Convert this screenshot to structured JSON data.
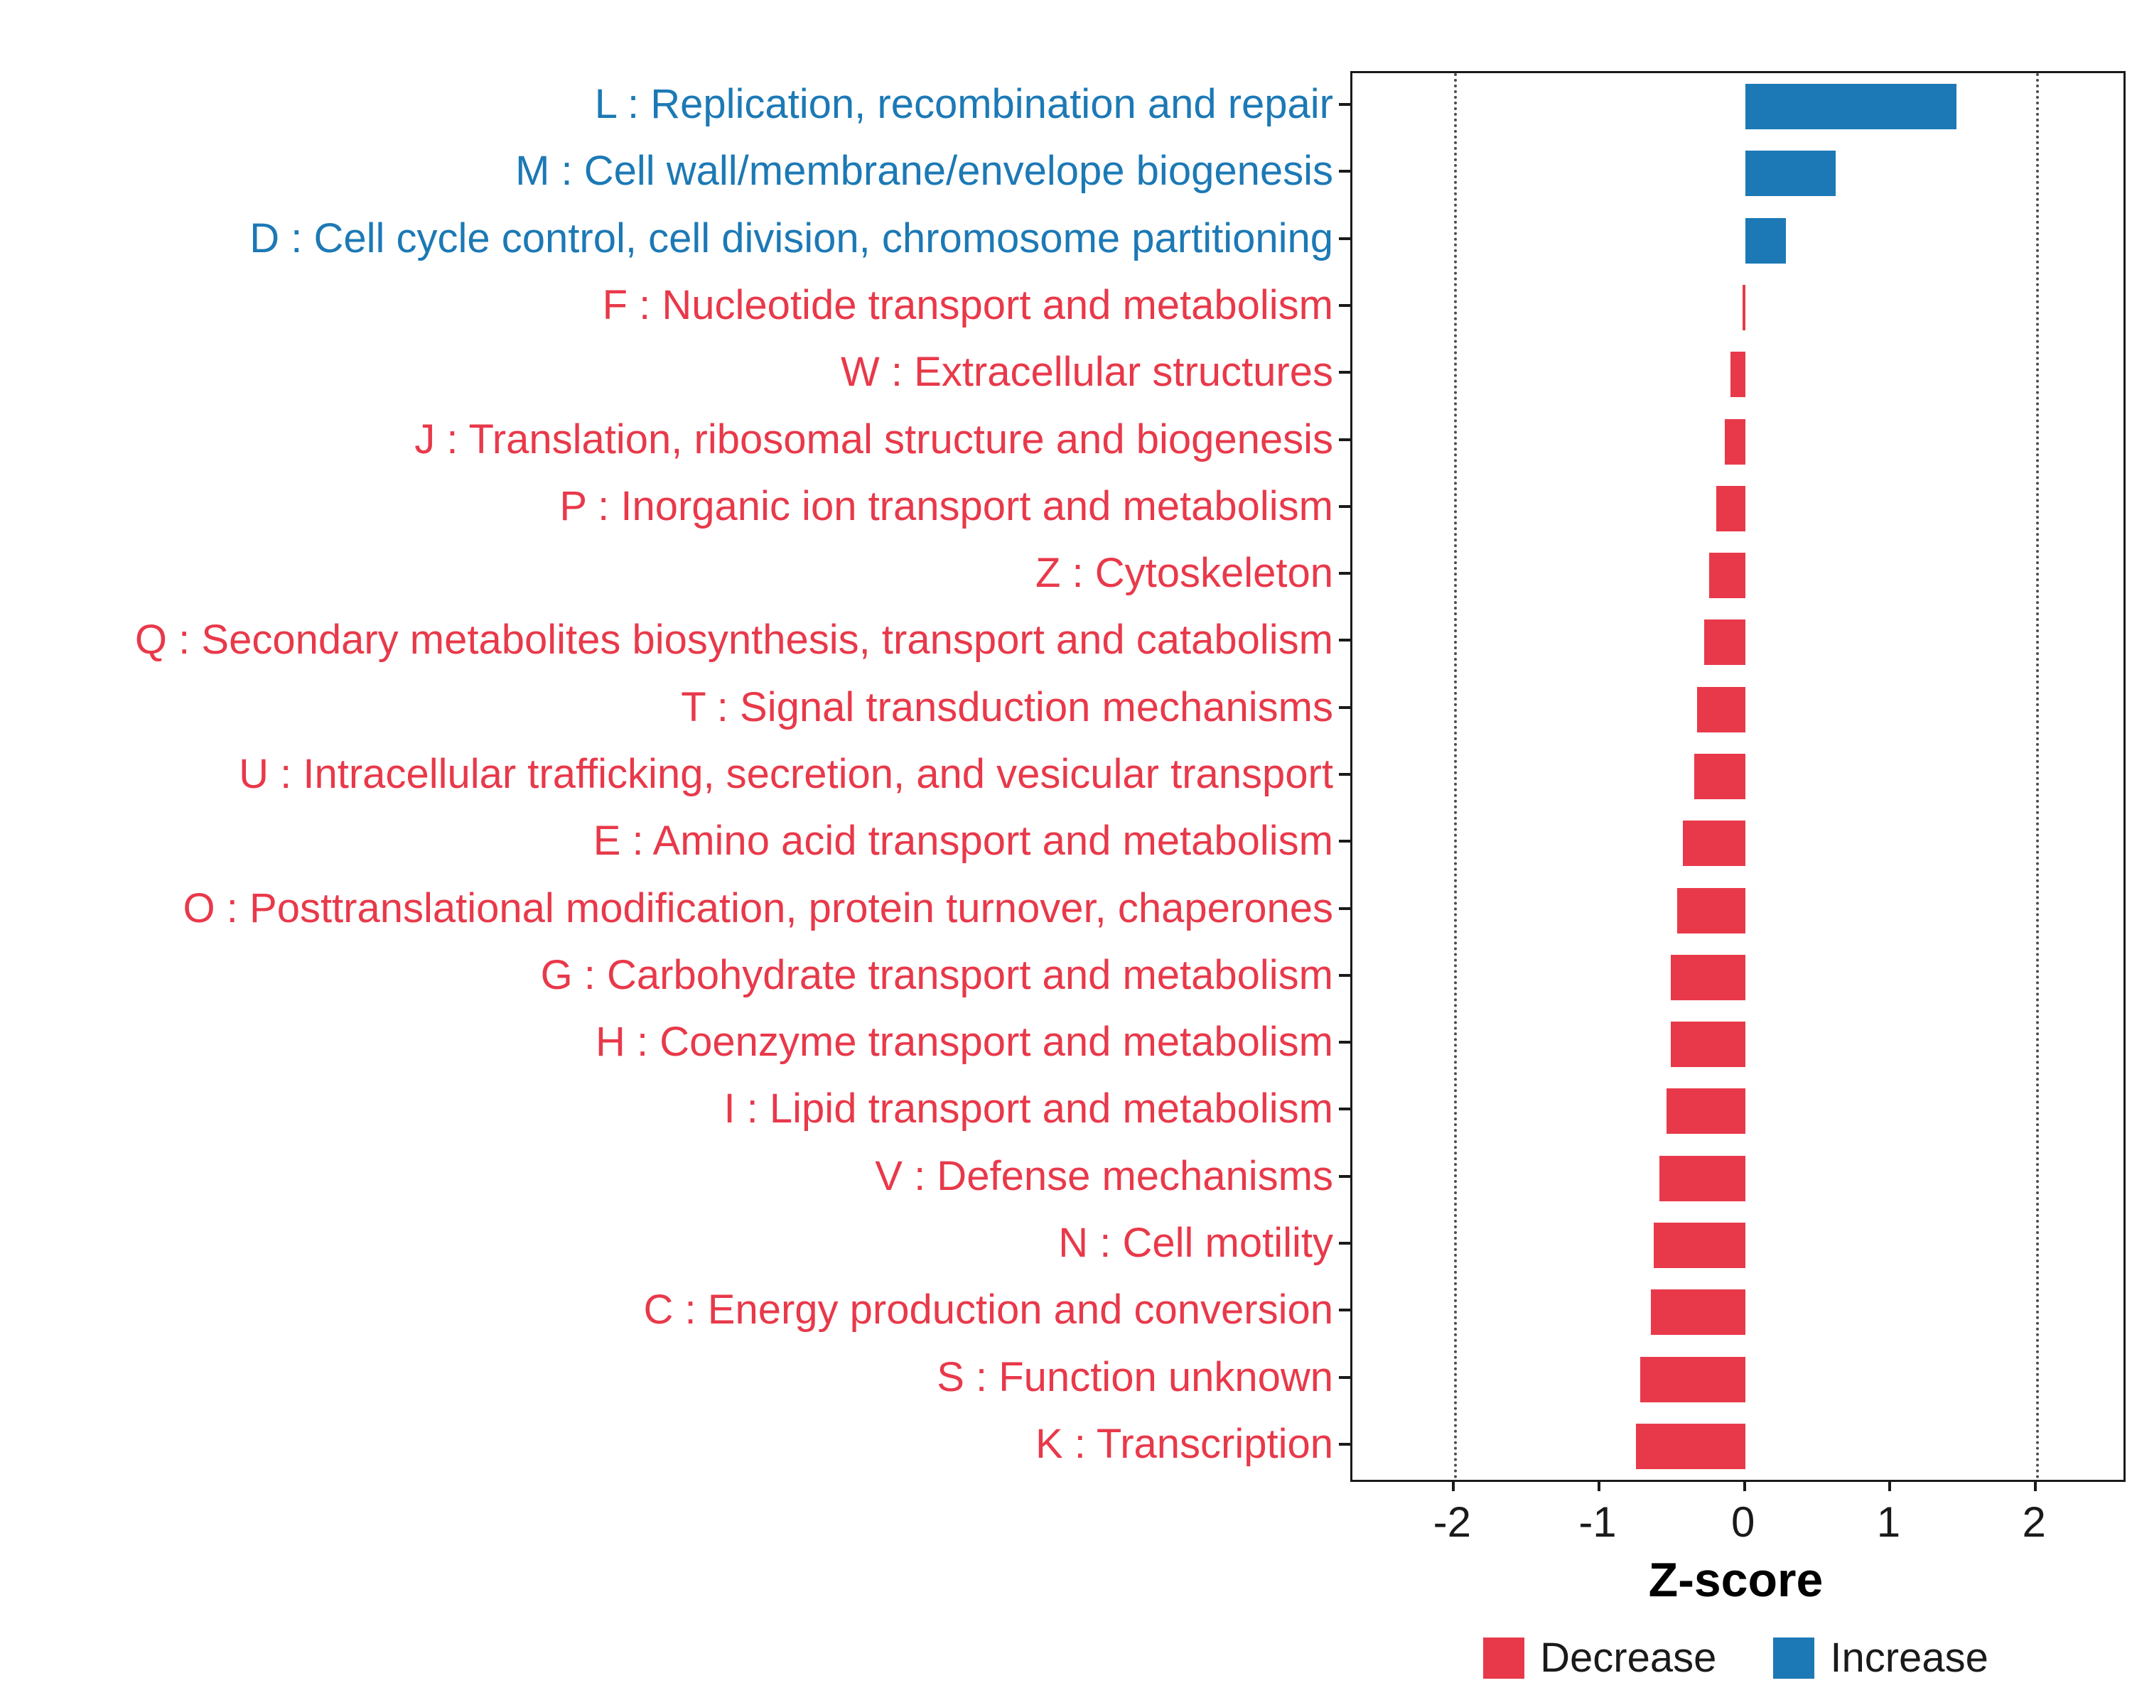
{
  "chart_data": {
    "type": "bar",
    "orientation": "horizontal",
    "title": "",
    "xlabel": "Z-score",
    "ylabel": "",
    "xlim": [
      -2.7,
      2.6
    ],
    "xticks": [
      -2,
      -1,
      0,
      1,
      2
    ],
    "reference_lines": [
      -2,
      2
    ],
    "colors": {
      "decrease": "#E8394A",
      "increase": "#1C79B5"
    },
    "categories": [
      {
        "label": "L : Replication, recombination and repair",
        "value": 1.45,
        "group": "increase"
      },
      {
        "label": "M : Cell wall/membrane/envelope biogenesis",
        "value": 0.62,
        "group": "increase"
      },
      {
        "label": "D : Cell cycle control, cell division, chromosome partitioning",
        "value": 0.28,
        "group": "increase"
      },
      {
        "label": "F : Nucleotide transport and metabolism",
        "value": -0.02,
        "group": "decrease"
      },
      {
        "label": "W : Extracellular structures",
        "value": -0.1,
        "group": "decrease"
      },
      {
        "label": "J : Translation, ribosomal structure and biogenesis",
        "value": -0.14,
        "group": "decrease"
      },
      {
        "label": "P : Inorganic ion transport and metabolism",
        "value": -0.2,
        "group": "decrease"
      },
      {
        "label": "Z : Cytoskeleton",
        "value": -0.25,
        "group": "decrease"
      },
      {
        "label": "Q : Secondary metabolites biosynthesis, transport and catabolism",
        "value": -0.28,
        "group": "decrease"
      },
      {
        "label": "T : Signal transduction mechanisms",
        "value": -0.33,
        "group": "decrease"
      },
      {
        "label": "U : Intracellular trafficking, secretion, and vesicular transport",
        "value": -0.35,
        "group": "decrease"
      },
      {
        "label": "E : Amino acid transport and metabolism",
        "value": -0.43,
        "group": "decrease"
      },
      {
        "label": "O : Posttranslational modification, protein turnover, chaperones",
        "value": -0.47,
        "group": "decrease"
      },
      {
        "label": "G : Carbohydrate transport and metabolism",
        "value": -0.51,
        "group": "decrease"
      },
      {
        "label": "H : Coenzyme transport and metabolism",
        "value": -0.51,
        "group": "decrease"
      },
      {
        "label": "I : Lipid transport and metabolism",
        "value": -0.54,
        "group": "decrease"
      },
      {
        "label": "V : Defense mechanisms",
        "value": -0.59,
        "group": "decrease"
      },
      {
        "label": "N : Cell motility",
        "value": -0.63,
        "group": "decrease"
      },
      {
        "label": "C : Energy production and conversion",
        "value": -0.65,
        "group": "decrease"
      },
      {
        "label": "S : Function unknown",
        "value": -0.72,
        "group": "decrease"
      },
      {
        "label": "K : Transcription",
        "value": -0.75,
        "group": "decrease"
      }
    ],
    "legend": [
      {
        "label": "Decrease",
        "key": "decrease"
      },
      {
        "label": "Increase",
        "key": "increase"
      }
    ],
    "legend_position": "bottom"
  }
}
